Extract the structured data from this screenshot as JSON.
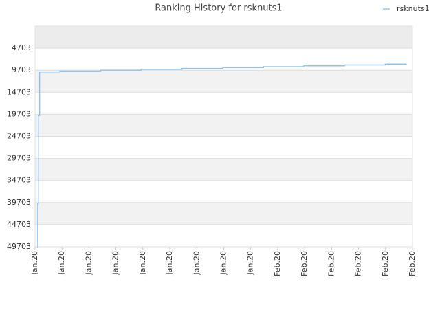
{
  "chart_data": {
    "type": "line",
    "title": "Ranking History for rsknuts1",
    "step": "after",
    "grid": true,
    "legend": "top-right",
    "xlim": [
      0,
      14
    ],
    "xticks": [
      {
        "value": 0,
        "label": "Jan.20"
      },
      {
        "value": 1,
        "label": "Jan.20"
      },
      {
        "value": 2,
        "label": "Jan.20"
      },
      {
        "value": 3,
        "label": "Jan.20"
      },
      {
        "value": 4,
        "label": "Jan.20"
      },
      {
        "value": 5,
        "label": "Jan.20"
      },
      {
        "value": 6,
        "label": "Jan.20"
      },
      {
        "value": 7,
        "label": "Jan.20"
      },
      {
        "value": 8,
        "label": "Jan.20"
      },
      {
        "value": 9,
        "label": "Feb.20"
      },
      {
        "value": 10,
        "label": "Feb.20"
      },
      {
        "value": 11,
        "label": "Feb.20"
      },
      {
        "value": 12,
        "label": "Feb.20"
      },
      {
        "value": 13,
        "label": "Feb.20"
      },
      {
        "value": 14,
        "label": "Feb.20"
      }
    ],
    "ylim": [
      49703,
      -297
    ],
    "yticks": [
      4703,
      9703,
      14703,
      19703,
      24703,
      29703,
      34703,
      39703,
      44703,
      49703
    ],
    "x": [
      0.08,
      0.1,
      0.12,
      0.17,
      0.92,
      2.43,
      3.94,
      5.45,
      6.96,
      8.47,
      9.97,
      11.48,
      12.99,
      13.78
    ],
    "series": [
      {
        "name": "rsknuts1",
        "color": "#90c4f0",
        "values": [
          49703,
          40000,
          20000,
          10100,
          9900,
          9700,
          9500,
          9300,
          9100,
          8900,
          8700,
          8500,
          8300,
          8300
        ]
      }
    ]
  }
}
